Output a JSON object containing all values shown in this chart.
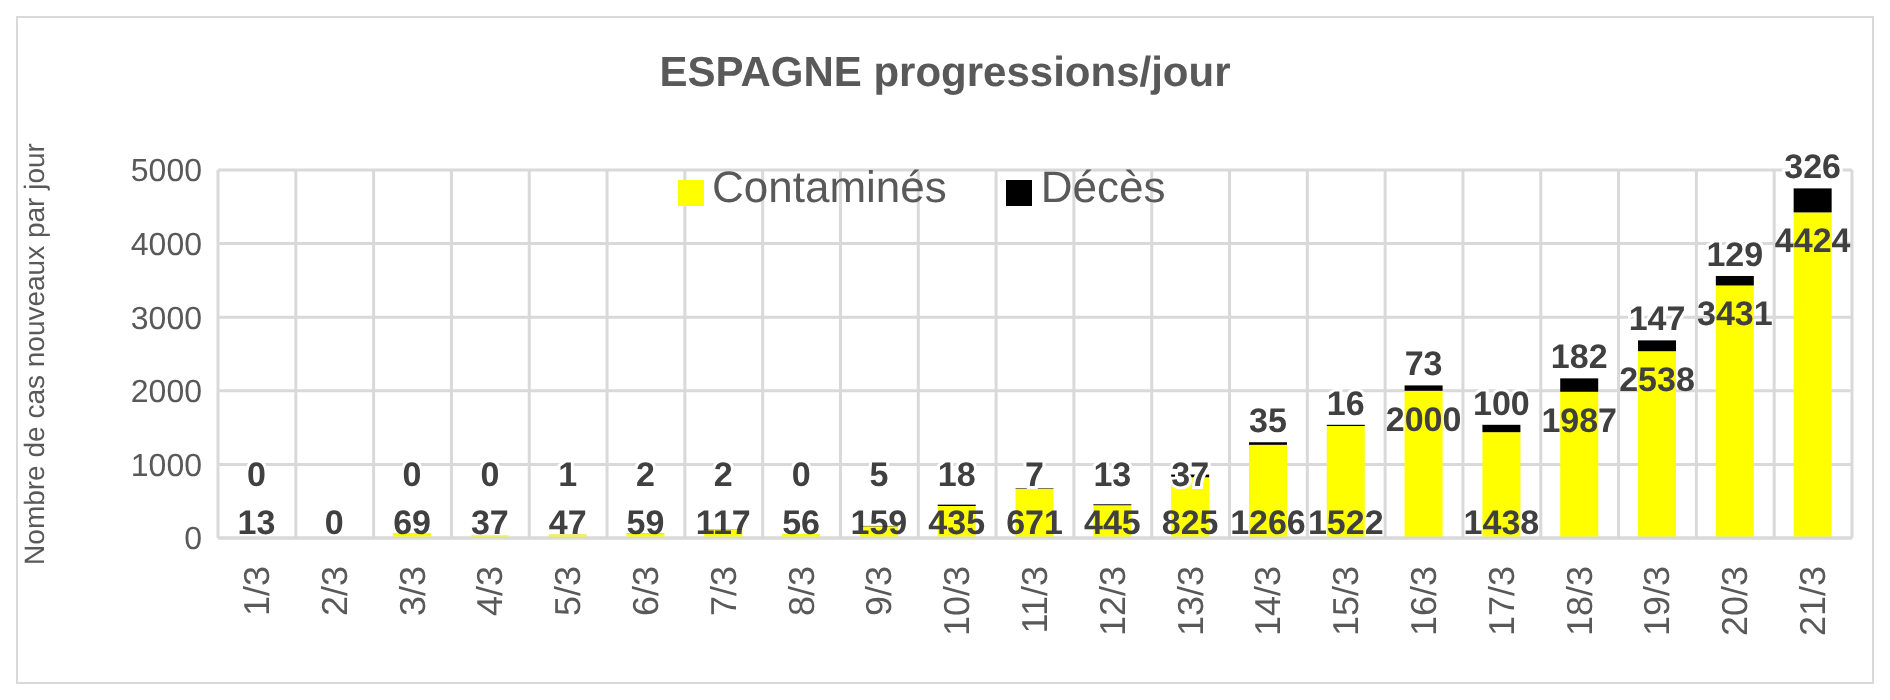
{
  "chart_data": {
    "type": "bar",
    "title": "ESPAGNE progressions/jour",
    "ylabel": "Nombre de cas nouveaux par jour",
    "categories": [
      "1/3",
      "2/3",
      "3/3",
      "4/3",
      "5/3",
      "6/3",
      "7/3",
      "8/3",
      "9/3",
      "10/3",
      "11/3",
      "12/3",
      "13/3",
      "14/3",
      "15/3",
      "16/3",
      "17/3",
      "18/3",
      "19/3",
      "20/3",
      "21/3"
    ],
    "stacked": true,
    "series": [
      {
        "name": "Contaminés",
        "color": "#ffff00",
        "values": [
          13,
          0,
          69,
          37,
          47,
          59,
          117,
          56,
          159,
          435,
          671,
          445,
          825,
          1266,
          1522,
          2000,
          1438,
          1987,
          2538,
          3431,
          4424
        ],
        "value_labels": [
          "13",
          "0",
          "69",
          "37",
          "47",
          "59",
          "117",
          "56",
          "159",
          "435",
          "671",
          "445",
          "825",
          "1266",
          "1522",
          "2000",
          "1438",
          "1987",
          "2538",
          "3431",
          "4424"
        ]
      },
      {
        "name": "Décès",
        "color": "#000000",
        "values": [
          0,
          0,
          0,
          0,
          1,
          2,
          2,
          0,
          5,
          18,
          7,
          13,
          37,
          35,
          16,
          73,
          100,
          182,
          147,
          129,
          326
        ],
        "value_labels": [
          "0",
          null,
          "0",
          "0",
          "1",
          "2",
          "2",
          "0",
          "5",
          "18",
          "7",
          "13",
          "37",
          "35",
          "16",
          "73",
          "100",
          "182",
          "147",
          "129",
          "326"
        ]
      }
    ],
    "ylim": [
      0,
      5000
    ],
    "yticks": [
      0,
      1000,
      2000,
      3000,
      4000,
      5000
    ],
    "grid": true,
    "legend": "top"
  }
}
